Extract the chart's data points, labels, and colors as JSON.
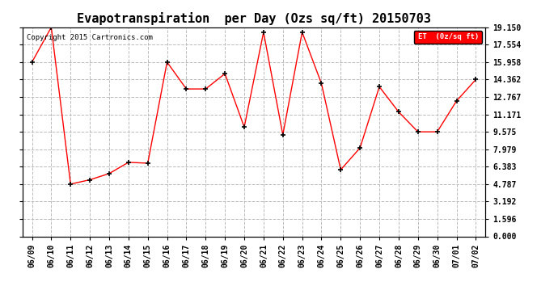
{
  "title": "Evapotranspiration  per Day (Ozs sq/ft) 20150703",
  "copyright": "Copyright 2015 Cartronics.com",
  "legend_label": "ET  (0z/sq ft)",
  "dates": [
    "06/09",
    "06/10",
    "06/11",
    "06/12",
    "06/13",
    "06/14",
    "06/15",
    "06/16",
    "06/17",
    "06/18",
    "06/19",
    "06/20",
    "06/21",
    "06/22",
    "06/23",
    "06/24",
    "06/25",
    "06/26",
    "06/27",
    "06/28",
    "06/29",
    "06/30",
    "07/01",
    "07/02"
  ],
  "values": [
    15.958,
    19.15,
    4.787,
    5.18,
    5.75,
    6.78,
    6.7,
    15.958,
    13.5,
    13.5,
    14.9,
    10.0,
    18.7,
    9.3,
    18.7,
    14.0,
    6.1,
    8.1,
    13.7,
    11.4,
    9.575,
    9.575,
    12.4,
    14.362
  ],
  "line_color": "red",
  "marker": "+",
  "marker_color": "black",
  "bg_color": "white",
  "grid_color": "#bbbbbb",
  "yticks": [
    0.0,
    1.596,
    3.192,
    4.787,
    6.383,
    7.979,
    9.575,
    11.171,
    12.767,
    14.362,
    15.958,
    17.554,
    19.15
  ],
  "ylim": [
    0,
    19.15
  ],
  "legend_bg": "red",
  "legend_text_color": "white",
  "title_fontsize": 11,
  "tick_fontsize": 7,
  "copyright_fontsize": 6.5
}
